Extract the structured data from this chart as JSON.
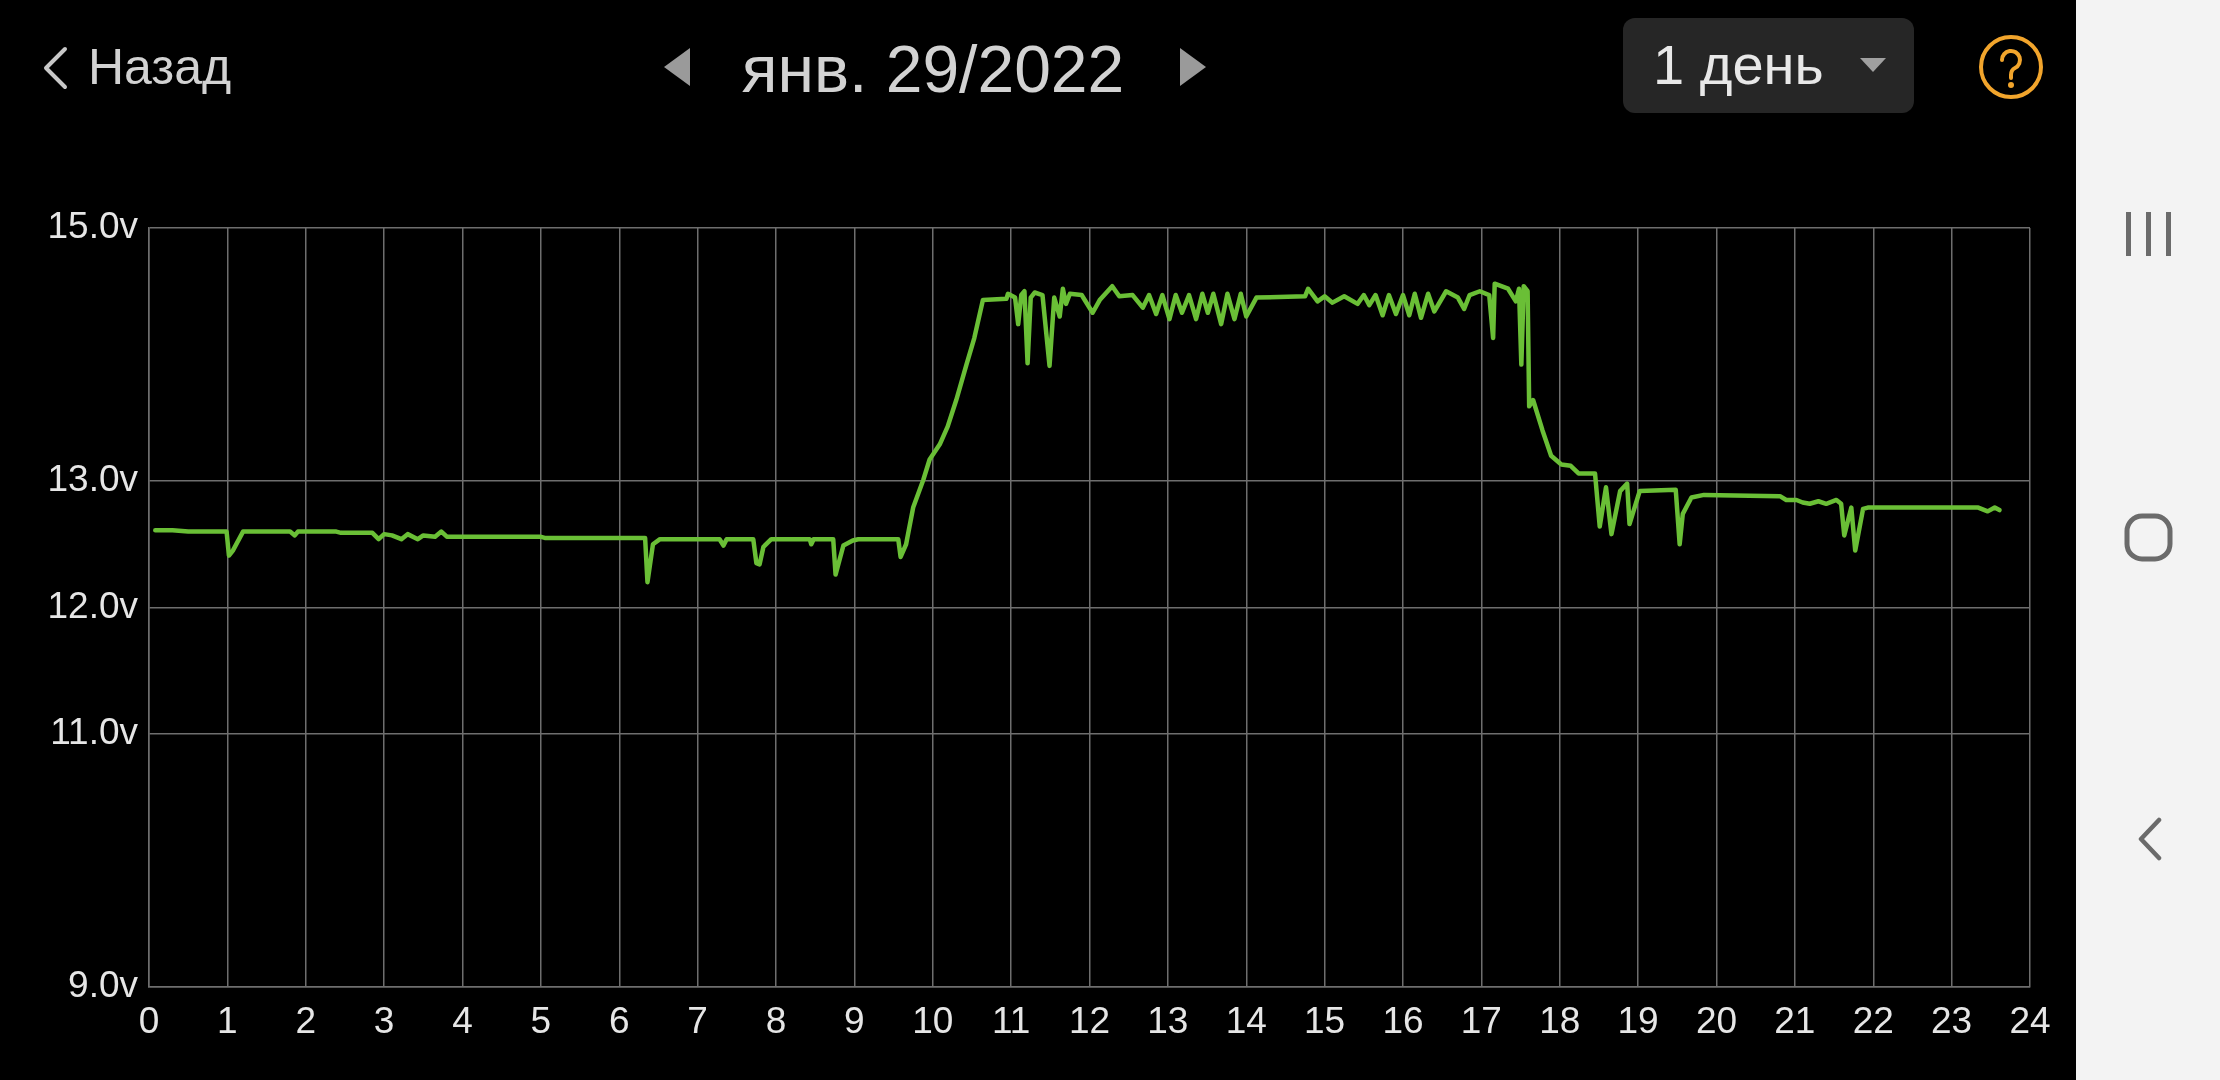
{
  "chart_data": {
    "type": "line",
    "title": "янв. 29/2022",
    "annotations": [
      "Назад",
      "1 день"
    ],
    "x": [
      0.08,
      0.3,
      0.5,
      0.99,
      1.02,
      1.07,
      1.2,
      1.8,
      1.86,
      1.9,
      2.39,
      2.45,
      2.85,
      2.93,
      3.0,
      3.1,
      3.22,
      3.3,
      3.43,
      3.5,
      3.65,
      3.73,
      3.8,
      3.97,
      4.99,
      5.05,
      6.0,
      6.33,
      6.36,
      6.43,
      6.52,
      7.28,
      7.33,
      7.37,
      7.71,
      7.75,
      7.79,
      7.84,
      7.94,
      8.43,
      8.45,
      8.48,
      8.73,
      8.76,
      8.86,
      8.98,
      9.05,
      9.56,
      9.59,
      9.66,
      9.75,
      9.88,
      9.96,
      10.09,
      10.19,
      10.3,
      10.43,
      10.53,
      10.64,
      10.94,
      10.96,
      11.05,
      11.09,
      11.13,
      11.17,
      11.21,
      11.25,
      11.3,
      11.4,
      11.49,
      11.55,
      11.62,
      11.66,
      11.7,
      11.75,
      11.9,
      12.04,
      12.13,
      12.29,
      12.38,
      12.55,
      12.68,
      12.76,
      12.85,
      12.93,
      13.02,
      13.1,
      13.18,
      13.27,
      13.36,
      13.44,
      13.51,
      13.58,
      13.68,
      13.76,
      13.85,
      13.93,
      14.0,
      14.13,
      14.75,
      14.79,
      14.91,
      15.0,
      15.1,
      15.25,
      15.42,
      15.5,
      15.57,
      15.65,
      15.74,
      15.82,
      15.91,
      16.0,
      16.08,
      16.15,
      16.23,
      16.32,
      16.4,
      16.55,
      16.7,
      16.78,
      16.85,
      16.98,
      17.1,
      17.15,
      17.17,
      17.34,
      17.44,
      17.48,
      17.51,
      17.54,
      17.59,
      17.61,
      17.66,
      17.78,
      17.89,
      18.02,
      18.14,
      18.24,
      18.45,
      18.51,
      18.59,
      18.66,
      18.77,
      18.86,
      18.89,
      19.02,
      19.48,
      19.53,
      19.57,
      19.68,
      19.84,
      20.81,
      20.89,
      21.02,
      21.1,
      21.19,
      21.3,
      21.4,
      21.53,
      21.59,
      21.63,
      21.72,
      21.77,
      21.87,
      21.93,
      23.34,
      23.46,
      23.55,
      23.61
    ],
    "values": [
      12.61,
      12.61,
      12.6,
      12.6,
      12.41,
      12.45,
      12.6,
      12.6,
      12.57,
      12.6,
      12.6,
      12.59,
      12.59,
      12.54,
      12.58,
      12.57,
      12.54,
      12.58,
      12.54,
      12.57,
      12.56,
      12.6,
      12.56,
      12.56,
      12.56,
      12.55,
      12.55,
      12.55,
      12.2,
      12.5,
      12.54,
      12.54,
      12.49,
      12.54,
      12.54,
      12.35,
      12.34,
      12.48,
      12.54,
      12.54,
      12.5,
      12.54,
      12.54,
      12.26,
      12.49,
      12.53,
      12.54,
      12.54,
      12.4,
      12.5,
      12.79,
      13.01,
      13.17,
      13.29,
      13.43,
      13.64,
      13.92,
      14.13,
      14.43,
      14.44,
      14.48,
      14.45,
      14.24,
      14.47,
      14.5,
      13.93,
      14.45,
      14.49,
      14.47,
      13.91,
      14.45,
      14.3,
      14.52,
      14.4,
      14.48,
      14.47,
      14.33,
      14.43,
      14.54,
      14.46,
      14.47,
      14.37,
      14.47,
      14.32,
      14.47,
      14.28,
      14.47,
      14.33,
      14.47,
      14.28,
      14.48,
      14.33,
      14.48,
      14.24,
      14.48,
      14.28,
      14.48,
      14.3,
      14.45,
      14.46,
      14.52,
      14.42,
      14.46,
      14.41,
      14.46,
      14.4,
      14.47,
      14.39,
      14.47,
      14.31,
      14.47,
      14.32,
      14.47,
      14.31,
      14.48,
      14.29,
      14.48,
      14.34,
      14.5,
      14.45,
      14.36,
      14.47,
      14.5,
      14.47,
      14.13,
      14.56,
      14.52,
      14.42,
      14.52,
      13.92,
      14.54,
      14.5,
      13.59,
      13.64,
      13.4,
      13.2,
      13.13,
      13.12,
      13.06,
      13.06,
      12.64,
      12.95,
      12.58,
      12.92,
      12.98,
      12.66,
      12.92,
      12.93,
      12.5,
      12.74,
      12.87,
      12.89,
      12.88,
      12.85,
      12.85,
      12.83,
      12.82,
      12.84,
      12.82,
      12.85,
      12.82,
      12.57,
      12.79,
      12.45,
      12.78,
      12.79,
      12.79,
      12.76,
      12.79,
      12.77
    ],
    "color": "#6abf36",
    "xlim": [
      0,
      24
    ],
    "xticks": [
      0,
      1,
      2,
      3,
      4,
      5,
      6,
      7,
      8,
      9,
      10,
      11,
      12,
      13,
      14,
      15,
      16,
      17,
      18,
      19,
      20,
      21,
      22,
      23,
      24
    ],
    "ylim": [
      9,
      15
    ],
    "yticks": [
      {
        "value": 9,
        "label": "9.0v"
      },
      {
        "value": 11,
        "label": "11.0v"
      },
      {
        "value": 12,
        "label": "12.0v"
      },
      {
        "value": 13,
        "label": "13.0v"
      },
      {
        "value": 15,
        "label": "15.0v"
      }
    ],
    "grid": true,
    "legend": false,
    "marker": "none",
    "line_style": "solid"
  }
}
